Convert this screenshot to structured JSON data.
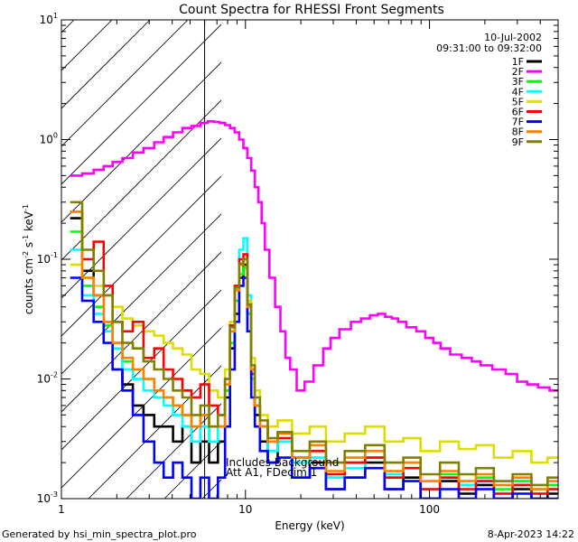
{
  "chart_data": {
    "type": "line",
    "title": "Count Spectra for RHESSI Front Segments",
    "xlabel": "Energy (keV)",
    "ylabel": "counts cm^-2 s^-1 keV^-1",
    "xscale": "log",
    "yscale": "log",
    "xlim": [
      1,
      500
    ],
    "ylim": [
      0.001,
      10
    ],
    "x_ticks": [
      {
        "value": 1,
        "label": "1"
      },
      {
        "value": 10,
        "label": "10"
      },
      {
        "value": 100,
        "label": "100"
      }
    ],
    "y_ticks": [
      {
        "value": 0.001,
        "base": "10",
        "exp": "-3"
      },
      {
        "value": 0.01,
        "base": "10",
        "exp": "-2"
      },
      {
        "value": 0.1,
        "base": "10",
        "exp": "-1"
      },
      {
        "value": 1,
        "base": "10",
        "exp": "0"
      },
      {
        "value": 10,
        "base": "10",
        "exp": "1"
      }
    ],
    "date": "10-Jul-2002",
    "time_range": "09:31:00 to 09:32:00",
    "attenuator_threshold_kev": 6,
    "annotations": [
      "Includes Background",
      "Att A1, FDecim 1"
    ],
    "footer_left": "Generated by hsi_min_spectra_plot.pro",
    "footer_right": "8-Apr-2023 14:22",
    "legend_position": "top-right",
    "series": [
      {
        "name": "1F",
        "color": "#000000",
        "x": [
          1.2,
          1.4,
          1.6,
          1.8,
          2.0,
          2.3,
          2.6,
          3.0,
          3.4,
          3.8,
          4.3,
          4.8,
          5.4,
          6.0,
          6.7,
          7.5,
          8.0,
          8.5,
          9.0,
          9.5,
          10.0,
          10.5,
          11.0,
          11.5,
          12.5,
          14,
          16,
          20,
          25,
          30,
          40,
          50,
          65,
          80,
          100,
          130,
          160,
          200,
          250,
          320,
          400,
          480
        ],
        "y": [
          0.22,
          0.08,
          0.05,
          0.03,
          0.012,
          0.009,
          0.006,
          0.005,
          0.004,
          0.004,
          0.003,
          0.004,
          0.002,
          0.003,
          0.002,
          0.003,
          0.007,
          0.018,
          0.035,
          0.07,
          0.09,
          0.04,
          0.012,
          0.005,
          0.003,
          0.002,
          0.003,
          0.0015,
          0.002,
          0.0012,
          0.0015,
          0.002,
          0.0012,
          0.0015,
          0.001,
          0.0014,
          0.0011,
          0.0013,
          0.001,
          0.0012,
          0.001,
          0.0011
        ]
      },
      {
        "name": "2F",
        "color": "#ff00ff",
        "x": [
          1.2,
          1.4,
          1.6,
          1.8,
          2.0,
          2.3,
          2.6,
          3.0,
          3.4,
          3.8,
          4.3,
          4.8,
          5.4,
          6.0,
          6.5,
          7.0,
          7.5,
          8.0,
          8.5,
          9.0,
          9.5,
          10.0,
          10.5,
          11.0,
          11.5,
          12.0,
          12.5,
          13.0,
          14.0,
          15.0,
          16.0,
          17.0,
          18.0,
          20,
          22,
          25,
          28,
          30,
          35,
          40,
          45,
          50,
          55,
          60,
          65,
          70,
          80,
          90,
          100,
          110,
          120,
          140,
          160,
          180,
          200,
          240,
          280,
          320,
          360,
          420,
          480
        ],
        "y": [
          0.5,
          0.52,
          0.56,
          0.6,
          0.65,
          0.7,
          0.78,
          0.85,
          0.95,
          1.05,
          1.15,
          1.25,
          1.3,
          1.38,
          1.42,
          1.4,
          1.38,
          1.32,
          1.25,
          1.15,
          1.0,
          0.85,
          0.7,
          0.55,
          0.4,
          0.3,
          0.2,
          0.12,
          0.07,
          0.04,
          0.025,
          0.015,
          0.012,
          0.008,
          0.0095,
          0.013,
          0.018,
          0.022,
          0.026,
          0.03,
          0.032,
          0.034,
          0.035,
          0.033,
          0.032,
          0.03,
          0.027,
          0.025,
          0.022,
          0.02,
          0.018,
          0.016,
          0.015,
          0.014,
          0.013,
          0.012,
          0.011,
          0.0095,
          0.009,
          0.0085,
          0.008
        ]
      },
      {
        "name": "3F",
        "color": "#00ff00",
        "x": [
          1.2,
          1.4,
          1.6,
          1.8,
          2.0,
          2.3,
          2.6,
          3.0,
          3.4,
          3.8,
          4.3,
          4.8,
          5.4,
          6.0,
          6.7,
          7.5,
          8.0,
          8.5,
          9.0,
          9.5,
          10.0,
          10.5,
          11.0,
          11.5,
          12.5,
          14,
          16,
          20,
          25,
          30,
          40,
          50,
          65,
          80,
          100,
          130,
          160,
          200,
          250,
          320,
          400,
          480
        ],
        "y": [
          0.17,
          0.06,
          0.04,
          0.028,
          0.02,
          0.014,
          0.012,
          0.01,
          0.008,
          0.007,
          0.006,
          0.005,
          0.004,
          0.005,
          0.003,
          0.004,
          0.008,
          0.02,
          0.045,
          0.075,
          0.085,
          0.035,
          0.01,
          0.006,
          0.004,
          0.003,
          0.0035,
          0.002,
          0.0025,
          0.0015,
          0.002,
          0.0022,
          0.0015,
          0.0018,
          0.0012,
          0.0016,
          0.0013,
          0.0015,
          0.0012,
          0.0014,
          0.0012,
          0.0013
        ]
      },
      {
        "name": "4F",
        "color": "#00ffff",
        "x": [
          1.2,
          1.4,
          1.6,
          1.8,
          2.0,
          2.3,
          2.6,
          3.0,
          3.4,
          3.8,
          4.3,
          4.8,
          5.4,
          6.0,
          6.7,
          7.5,
          8.0,
          8.5,
          9.0,
          9.5,
          10.0,
          10.5,
          11.0,
          11.5,
          12.5,
          14,
          16,
          20,
          25,
          30,
          40,
          50,
          65,
          80,
          100,
          130,
          160,
          200,
          250,
          320,
          400,
          480
        ],
        "y": [
          0.12,
          0.05,
          0.035,
          0.025,
          0.018,
          0.012,
          0.01,
          0.008,
          0.007,
          0.006,
          0.005,
          0.004,
          0.003,
          0.004,
          0.003,
          0.004,
          0.01,
          0.025,
          0.06,
          0.12,
          0.15,
          0.05,
          0.012,
          0.006,
          0.004,
          0.0025,
          0.003,
          0.002,
          0.0022,
          0.0015,
          0.0018,
          0.0025,
          0.0016,
          0.0018,
          0.0012,
          0.0015,
          0.0013,
          0.0014,
          0.0011,
          0.0013,
          0.0011,
          0.0012
        ]
      },
      {
        "name": "5F",
        "color": "#dddd00",
        "x": [
          1.2,
          1.4,
          1.6,
          1.8,
          2.0,
          2.3,
          2.6,
          3.0,
          3.4,
          3.8,
          4.3,
          4.8,
          5.4,
          6.0,
          6.7,
          7.5,
          8.0,
          8.5,
          9.0,
          9.5,
          10.0,
          10.5,
          11.0,
          11.5,
          12.5,
          14,
          16,
          20,
          25,
          30,
          40,
          50,
          65,
          80,
          100,
          130,
          160,
          200,
          250,
          320,
          400,
          480
        ],
        "y": [
          0.09,
          0.07,
          0.06,
          0.05,
          0.04,
          0.032,
          0.028,
          0.025,
          0.023,
          0.02,
          0.018,
          0.016,
          0.012,
          0.011,
          0.008,
          0.007,
          0.012,
          0.03,
          0.06,
          0.09,
          0.1,
          0.045,
          0.015,
          0.008,
          0.005,
          0.004,
          0.0045,
          0.0035,
          0.004,
          0.003,
          0.0035,
          0.004,
          0.003,
          0.0032,
          0.0025,
          0.003,
          0.0026,
          0.0028,
          0.0022,
          0.0025,
          0.002,
          0.0022
        ]
      },
      {
        "name": "6F",
        "color": "#ff0000",
        "x": [
          1.2,
          1.4,
          1.6,
          1.8,
          2.0,
          2.3,
          2.6,
          3.0,
          3.4,
          3.8,
          4.3,
          4.8,
          5.4,
          6.0,
          6.7,
          7.5,
          8.0,
          8.5,
          9.0,
          9.5,
          10.0,
          10.5,
          11.0,
          11.5,
          12.5,
          14,
          16,
          20,
          25,
          30,
          40,
          50,
          65,
          80,
          100,
          130,
          160,
          200,
          250,
          320,
          400,
          480
        ],
        "y": [
          0.25,
          0.1,
          0.14,
          0.06,
          0.03,
          0.025,
          0.03,
          0.015,
          0.018,
          0.012,
          0.01,
          0.008,
          0.007,
          0.009,
          0.006,
          0.005,
          0.01,
          0.028,
          0.06,
          0.1,
          0.11,
          0.04,
          0.011,
          0.006,
          0.004,
          0.003,
          0.0032,
          0.0022,
          0.0025,
          0.0016,
          0.002,
          0.0022,
          0.0015,
          0.0018,
          0.0012,
          0.0015,
          0.0012,
          0.0014,
          0.0011,
          0.0013,
          0.0011,
          0.0012
        ]
      },
      {
        "name": "7F",
        "color": "#0000ff",
        "x": [
          1.2,
          1.4,
          1.6,
          1.8,
          2.0,
          2.3,
          2.6,
          3.0,
          3.4,
          3.8,
          4.3,
          4.8,
          5.4,
          6.0,
          6.7,
          7.5,
          8.0,
          8.5,
          9.0,
          9.5,
          10.0,
          10.5,
          11.0,
          11.5,
          12.5,
          14,
          16,
          20,
          25,
          30,
          40,
          50,
          65,
          80,
          100,
          130,
          160,
          200,
          250,
          320,
          400,
          480
        ],
        "y": [
          0.07,
          0.045,
          0.03,
          0.02,
          0.012,
          0.008,
          0.005,
          0.003,
          0.002,
          0.0015,
          0.002,
          0.0015,
          0.001,
          0.0015,
          0.001,
          0.0015,
          0.004,
          0.012,
          0.03,
          0.06,
          0.07,
          0.025,
          0.007,
          0.004,
          0.0025,
          0.002,
          0.0022,
          0.0015,
          0.0018,
          0.0012,
          0.0015,
          0.0018,
          0.0012,
          0.0014,
          0.001,
          0.0012,
          0.001,
          0.0012,
          0.001,
          0.0011,
          0.001,
          0.001
        ]
      },
      {
        "name": "8F",
        "color": "#ff8000",
        "x": [
          1.2,
          1.4,
          1.6,
          1.8,
          2.0,
          2.3,
          2.6,
          3.0,
          3.4,
          3.8,
          4.3,
          4.8,
          5.4,
          6.0,
          6.7,
          7.5,
          8.0,
          8.5,
          9.0,
          9.5,
          10.0,
          10.5,
          11.0,
          11.5,
          12.5,
          14,
          16,
          20,
          25,
          30,
          40,
          50,
          65,
          80,
          100,
          130,
          160,
          200,
          250,
          320,
          400,
          480
        ],
        "y": [
          0.25,
          0.07,
          0.05,
          0.03,
          0.02,
          0.015,
          0.012,
          0.01,
          0.008,
          0.007,
          0.006,
          0.005,
          0.004,
          0.005,
          0.004,
          0.004,
          0.009,
          0.025,
          0.055,
          0.09,
          0.1,
          0.04,
          0.012,
          0.006,
          0.004,
          0.003,
          0.0035,
          0.0022,
          0.0028,
          0.0017,
          0.0022,
          0.0025,
          0.0017,
          0.002,
          0.0014,
          0.0017,
          0.0014,
          0.0016,
          0.0013,
          0.0015,
          0.0012,
          0.0014
        ]
      },
      {
        "name": "9F",
        "color": "#808000",
        "x": [
          1.2,
          1.4,
          1.6,
          1.8,
          2.0,
          2.3,
          2.6,
          3.0,
          3.4,
          3.8,
          4.3,
          4.8,
          5.4,
          6.0,
          6.7,
          7.5,
          8.0,
          8.5,
          9.0,
          9.5,
          10.0,
          10.5,
          11.0,
          11.5,
          12.5,
          14,
          16,
          20,
          25,
          30,
          40,
          50,
          65,
          80,
          100,
          130,
          160,
          200,
          250,
          320,
          400,
          480
        ],
        "y": [
          0.3,
          0.12,
          0.08,
          0.05,
          0.03,
          0.02,
          0.018,
          0.014,
          0.012,
          0.01,
          0.008,
          0.007,
          0.005,
          0.006,
          0.004,
          0.005,
          0.01,
          0.027,
          0.058,
          0.092,
          0.1,
          0.042,
          0.013,
          0.007,
          0.0045,
          0.0032,
          0.0036,
          0.0025,
          0.003,
          0.002,
          0.0025,
          0.0028,
          0.002,
          0.0022,
          0.0016,
          0.002,
          0.0016,
          0.0018,
          0.0014,
          0.0016,
          0.0013,
          0.0015
        ]
      }
    ]
  }
}
